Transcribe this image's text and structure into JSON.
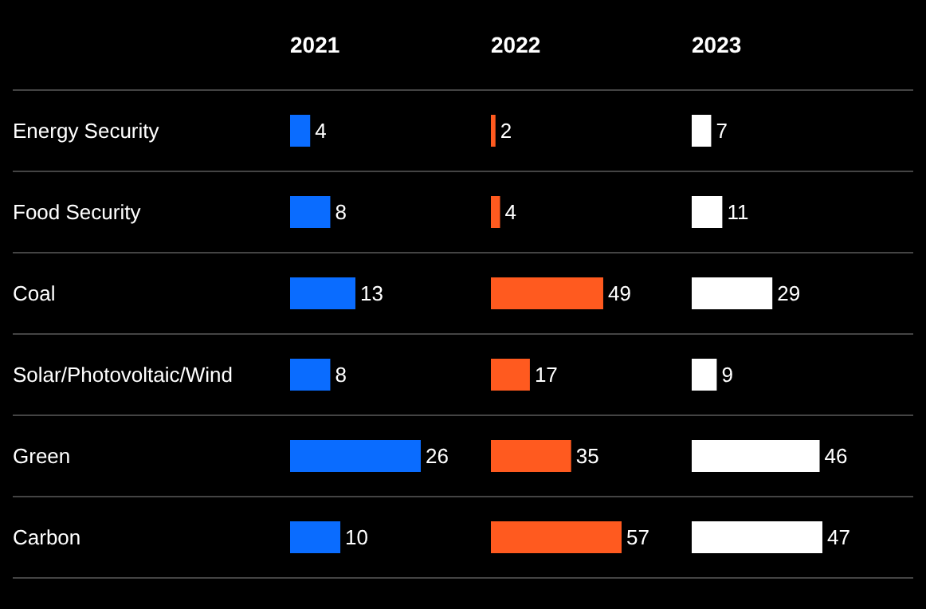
{
  "chart_data": [
    {
      "type": "bar",
      "orientation": "horizontal",
      "title": "2021",
      "categories": [
        "Energy Security",
        "Food Security",
        "Coal",
        "Solar/Photovoltaic/Wind",
        "Green",
        "Carbon"
      ],
      "values": [
        4,
        8,
        13,
        8,
        26,
        10
      ],
      "color": "#0a6cff",
      "data_labels": true,
      "tick_labels": "y"
    },
    {
      "type": "bar",
      "orientation": "horizontal",
      "title": "2022",
      "categories": [
        null,
        null,
        null,
        null,
        null,
        null
      ],
      "values": [
        2,
        4,
        49,
        17,
        35,
        57
      ],
      "color": "#ff5a1f",
      "data_labels": true,
      "tick_labels": false
    },
    {
      "type": "bar",
      "orientation": "horizontal",
      "title": "2023",
      "categories": [
        null,
        null,
        null,
        null,
        null,
        null
      ],
      "values": [
        7,
        11,
        29,
        9,
        46,
        47
      ],
      "color": "#ffffff",
      "data_labels": true,
      "tick_labels": false
    }
  ]
}
